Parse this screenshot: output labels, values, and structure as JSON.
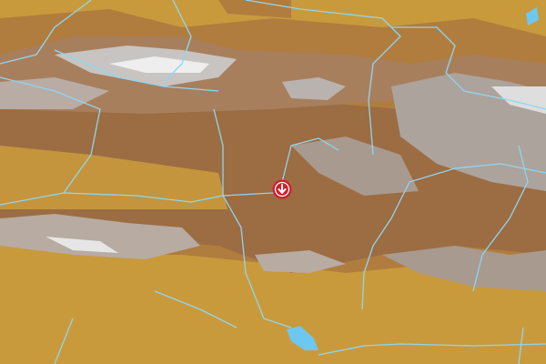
{
  "map": {
    "type": "terrain",
    "colors": {
      "lowland": "#c99a3c",
      "foothill": "#b07d3e",
      "highland": "#9c6c42",
      "rock": "#a89a8e",
      "snow": "#d8d8dc",
      "river": "#8fd6f2",
      "lake": "#6cc8f0"
    }
  },
  "marker": {
    "icon": "arrow-down-circle-icon",
    "color": "#d21f2b"
  }
}
